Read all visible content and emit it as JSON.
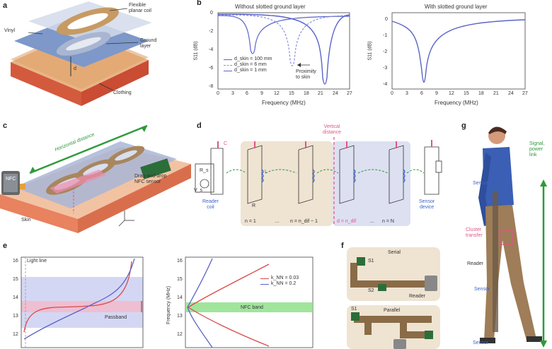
{
  "panels": {
    "a": {
      "letter": "a",
      "labels": {
        "coil": "Flexible\nplanar coil",
        "vinyl": "Vinyl",
        "ground": "Ground\nlayer",
        "d_s": "d",
        "clothing": "Clothing"
      }
    },
    "b": {
      "letter": "b",
      "titles": [
        "Without slotted ground layer",
        "With slotted ground layer"
      ],
      "ylabel": "S11 (dB)",
      "xlabel": "Frequency (MHz)",
      "legend": [
        "d_skin = 100 mm",
        "d_skin = 6 mm",
        "d_skin = 1 mm"
      ],
      "annotation": "Proximity\nto skin",
      "left_yticks": [
        "0",
        "-2",
        "-4",
        "-6",
        "-8"
      ],
      "right_yticks": [
        "0",
        "-1",
        "-2",
        "-3",
        "-4"
      ],
      "xticks": [
        "0",
        "3",
        "6",
        "9",
        "12",
        "15",
        "18",
        "21",
        "24",
        "27"
      ]
    },
    "c": {
      "letter": "c",
      "horizontal": "Horizontal distance",
      "nfc": "NFC",
      "sensor_label": "Drag-and-drop\nNFC sensor",
      "skin": "Skin"
    },
    "d": {
      "letter": "d",
      "vertical": "Vertical\ndistance",
      "reader": "Reader\ncoil",
      "sensor_device": "Sensor\ndevice",
      "n_labels": [
        "n = 1",
        "n = n_dif − 1",
        "d = n_dif",
        "n = N"
      ],
      "rs": "R_s",
      "vs": "V_s",
      "c": "C",
      "l": "L",
      "r": "R"
    },
    "e": {
      "letter": "e",
      "left_label": "Light line",
      "passband": "Passband",
      "legend": [
        "k_NN = 0.03",
        "k_NN = 0.2"
      ],
      "nfc_band": "NFC band",
      "ylabel": "Frequency (MHz)",
      "yticks": [
        "16",
        "15",
        "14",
        "13",
        "12"
      ]
    },
    "f": {
      "letter": "f",
      "serial": "Serial",
      "parallel": "Parallel",
      "s1": "S1",
      "s2": "S2",
      "reader": "Reader"
    },
    "g": {
      "letter": "g",
      "signal": "Signal,\npower\nlink",
      "sensor": "Sensor",
      "cluster": "Cluster\ntransfer",
      "reader": "Reader"
    }
  },
  "colors": {
    "blue_line": "#5a63c8",
    "green_arrow": "#2e9a3a",
    "pink_accent": "#e05585",
    "beige_bg": "#efe3d2",
    "lavender_bg": "#dde0f1",
    "skin_orange": "#e8825f"
  }
}
